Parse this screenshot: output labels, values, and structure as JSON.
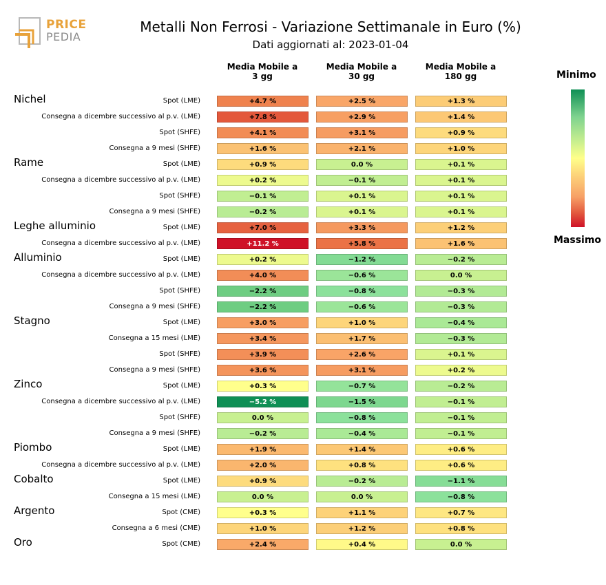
{
  "header": {
    "title": "Metalli Non Ferrosi - Variazione Settimanale in Euro (%)",
    "subtitle": "Dati aggiornati al: 2023-01-04",
    "logo_top": "PRICE",
    "logo_bottom": "PEDIA"
  },
  "legend": {
    "min_label": "Minimo",
    "max_label": "Massimo",
    "colors": [
      "#0f8f55",
      "#ffff8a",
      "#cf1127"
    ]
  },
  "chart_data": {
    "type": "heatmap",
    "title": "Metalli Non Ferrosi - Variazione Settimanale in Euro (%)",
    "columns": [
      "Media Mobile a\n3 gg",
      "Media Mobile a\n30 gg",
      "Media Mobile a\n180 gg"
    ],
    "color_scale": {
      "min": -5.2,
      "max": 11.2
    },
    "groups": [
      {
        "name": "Nichel",
        "rows": [
          {
            "label": "Spot (LME)",
            "values": [
              4.7,
              2.5,
              1.3
            ],
            "texts": [
              "+4.7 %",
              "+2.5 %",
              "+1.3 %"
            ]
          },
          {
            "label": "Consegna a dicembre successivo al p.v. (LME)",
            "values": [
              7.8,
              2.9,
              1.4
            ],
            "texts": [
              "+7.8 %",
              "+2.9 %",
              "+1.4 %"
            ]
          },
          {
            "label": "Spot (SHFE)",
            "values": [
              4.1,
              3.1,
              0.9
            ],
            "texts": [
              "+4.1 %",
              "+3.1 %",
              "+0.9 %"
            ]
          },
          {
            "label": "Consegna a 9 mesi (SHFE)",
            "values": [
              1.6,
              2.1,
              1.0
            ],
            "texts": [
              "+1.6 %",
              "+2.1 %",
              "+1.0 %"
            ]
          }
        ]
      },
      {
        "name": "Rame",
        "rows": [
          {
            "label": "Spot (LME)",
            "values": [
              0.9,
              0.0,
              0.1
            ],
            "texts": [
              "+0.9 %",
              "0.0 %",
              "+0.1 %"
            ]
          },
          {
            "label": "Consegna a dicembre successivo al p.v. (LME)",
            "values": [
              0.2,
              -0.1,
              0.1
            ],
            "texts": [
              "+0.2 %",
              "−0.1 %",
              "+0.1 %"
            ]
          },
          {
            "label": "Spot (SHFE)",
            "values": [
              -0.1,
              0.1,
              0.1
            ],
            "texts": [
              "−0.1 %",
              "+0.1 %",
              "+0.1 %"
            ]
          },
          {
            "label": "Consegna a 9 mesi (SHFE)",
            "values": [
              -0.2,
              0.1,
              0.1
            ],
            "texts": [
              "−0.2 %",
              "+0.1 %",
              "+0.1 %"
            ]
          }
        ]
      },
      {
        "name": "Leghe alluminio",
        "rows": [
          {
            "label": "Spot (LME)",
            "values": [
              7.0,
              3.3,
              1.2
            ],
            "texts": [
              "+7.0 %",
              "+3.3 %",
              "+1.2 %"
            ]
          },
          {
            "label": "Consegna a dicembre successivo al p.v. (LME)",
            "values": [
              11.2,
              5.8,
              1.6
            ],
            "texts": [
              "+11.2 %",
              "+5.8 %",
              "+1.6 %"
            ]
          }
        ]
      },
      {
        "name": "Alluminio",
        "rows": [
          {
            "label": "Spot (LME)",
            "values": [
              0.2,
              -1.2,
              -0.2
            ],
            "texts": [
              "+0.2 %",
              "−1.2 %",
              "−0.2 %"
            ]
          },
          {
            "label": "Consegna a dicembre successivo al p.v. (LME)",
            "values": [
              4.0,
              -0.6,
              0.0
            ],
            "texts": [
              "+4.0 %",
              "−0.6 %",
              "0.0 %"
            ]
          },
          {
            "label": "Spot (SHFE)",
            "values": [
              -2.2,
              -0.8,
              -0.3
            ],
            "texts": [
              "−2.2 %",
              "−0.8 %",
              "−0.3 %"
            ]
          },
          {
            "label": "Consegna a 9 mesi (SHFE)",
            "values": [
              -2.2,
              -0.6,
              -0.3
            ],
            "texts": [
              "−2.2 %",
              "−0.6 %",
              "−0.3 %"
            ]
          }
        ]
      },
      {
        "name": "Stagno",
        "rows": [
          {
            "label": "Spot (LME)",
            "values": [
              3.0,
              1.0,
              -0.4
            ],
            "texts": [
              "+3.0 %",
              "+1.0 %",
              "−0.4 %"
            ]
          },
          {
            "label": "Consegna a 15 mesi (LME)",
            "values": [
              3.4,
              1.7,
              -0.3
            ],
            "texts": [
              "+3.4 %",
              "+1.7 %",
              "−0.3 %"
            ]
          },
          {
            "label": "Spot (SHFE)",
            "values": [
              3.9,
              2.6,
              0.1
            ],
            "texts": [
              "+3.9 %",
              "+2.6 %",
              "+0.1 %"
            ]
          },
          {
            "label": "Consegna a 9 mesi (SHFE)",
            "values": [
              3.6,
              3.1,
              0.2
            ],
            "texts": [
              "+3.6 %",
              "+3.1 %",
              "+0.2 %"
            ]
          }
        ]
      },
      {
        "name": "Zinco",
        "rows": [
          {
            "label": "Spot (LME)",
            "values": [
              0.3,
              -0.7,
              -0.2
            ],
            "texts": [
              "+0.3 %",
              "−0.7 %",
              "−0.2 %"
            ]
          },
          {
            "label": "Consegna a dicembre successivo al p.v. (LME)",
            "values": [
              -5.2,
              -1.5,
              -0.1
            ],
            "texts": [
              "−5.2 %",
              "−1.5 %",
              "−0.1 %"
            ]
          },
          {
            "label": "Spot (SHFE)",
            "values": [
              0.0,
              -0.8,
              -0.1
            ],
            "texts": [
              "0.0 %",
              "−0.8 %",
              "−0.1 %"
            ]
          },
          {
            "label": "Consegna a 9 mesi (SHFE)",
            "values": [
              -0.2,
              -0.4,
              -0.1
            ],
            "texts": [
              "−0.2 %",
              "−0.4 %",
              "−0.1 %"
            ]
          }
        ]
      },
      {
        "name": "Piombo",
        "rows": [
          {
            "label": "Spot (LME)",
            "values": [
              1.9,
              1.4,
              0.6
            ],
            "texts": [
              "+1.9 %",
              "+1.4 %",
              "+0.6 %"
            ]
          },
          {
            "label": "Consegna a dicembre successivo al p.v. (LME)",
            "values": [
              2.0,
              0.8,
              0.6
            ],
            "texts": [
              "+2.0 %",
              "+0.8 %",
              "+0.6 %"
            ]
          }
        ]
      },
      {
        "name": "Cobalto",
        "rows": [
          {
            "label": "Spot (LME)",
            "values": [
              0.9,
              -0.2,
              -1.1
            ],
            "texts": [
              "+0.9 %",
              "−0.2 %",
              "−1.1 %"
            ]
          },
          {
            "label": "Consegna a 15 mesi (LME)",
            "values": [
              0.0,
              0.0,
              -0.8
            ],
            "texts": [
              "0.0 %",
              "0.0 %",
              "−0.8 %"
            ]
          }
        ]
      },
      {
        "name": "Argento",
        "rows": [
          {
            "label": "Spot (CME)",
            "values": [
              0.3,
              1.1,
              0.7
            ],
            "texts": [
              "+0.3 %",
              "+1.1 %",
              "+0.7 %"
            ]
          },
          {
            "label": "Consegna a 6 mesi (CME)",
            "values": [
              1.0,
              1.2,
              0.8
            ],
            "texts": [
              "+1.0 %",
              "+1.2 %",
              "+0.8 %"
            ]
          }
        ]
      },
      {
        "name": "Oro",
        "rows": [
          {
            "label": "Spot (CME)",
            "values": [
              2.4,
              0.4,
              0.0
            ],
            "texts": [
              "+2.4 %",
              "+0.4 %",
              "0.0 %"
            ]
          }
        ]
      }
    ]
  }
}
